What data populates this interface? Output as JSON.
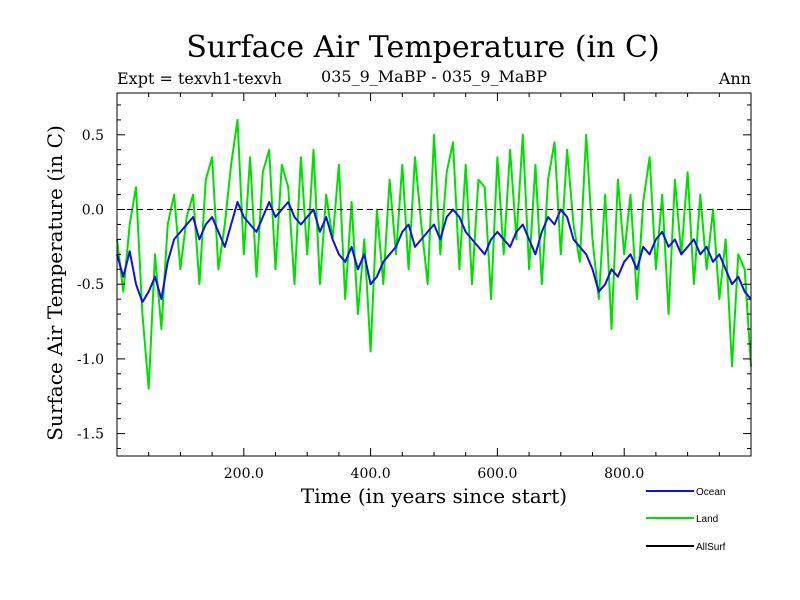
{
  "chart_data": {
    "type": "line",
    "title": "Surface Air Temperature (in C)",
    "subtitle_left": "Expt = texvh1-texvh",
    "subtitle_center": "035_9_MaBP - 035_9_MaBP",
    "subtitle_right": "Ann",
    "xlabel": "Time (in years since start)",
    "ylabel": "Surface Air Temperature (in C)",
    "xlim": [
      0,
      1000
    ],
    "ylim": [
      -1.65,
      0.78
    ],
    "x_ticks": [
      200,
      400,
      600,
      800
    ],
    "x_tick_labels": [
      "200.0",
      "400.0",
      "600.0",
      "800.0"
    ],
    "y_ticks": [
      0.5,
      0.0,
      -0.5,
      -1.0,
      -1.5
    ],
    "y_tick_labels": [
      "0.5",
      "0.0",
      "-0.5",
      "-1.0",
      "-1.5"
    ],
    "reference_line": 0.0,
    "series": [
      {
        "name": "Ocean",
        "color": "#1010e0",
        "x": [
          0,
          10,
          20,
          30,
          40,
          50,
          60,
          70,
          80,
          90,
          100,
          110,
          120,
          130,
          140,
          150,
          160,
          170,
          180,
          190,
          200,
          210,
          220,
          230,
          240,
          250,
          260,
          270,
          280,
          290,
          300,
          310,
          320,
          330,
          340,
          350,
          360,
          370,
          380,
          390,
          400,
          410,
          420,
          430,
          440,
          450,
          460,
          470,
          480,
          490,
          500,
          510,
          520,
          530,
          540,
          550,
          560,
          570,
          580,
          590,
          600,
          610,
          620,
          630,
          640,
          650,
          660,
          670,
          680,
          690,
          700,
          710,
          720,
          730,
          740,
          750,
          760,
          770,
          780,
          790,
          800,
          810,
          820,
          830,
          840,
          850,
          860,
          870,
          880,
          890,
          900,
          910,
          920,
          930,
          940,
          950,
          960,
          970,
          980,
          990,
          1000
        ],
        "values": [
          -0.3,
          -0.45,
          -0.28,
          -0.5,
          -0.62,
          -0.55,
          -0.45,
          -0.6,
          -0.35,
          -0.2,
          -0.15,
          -0.1,
          -0.05,
          -0.2,
          -0.1,
          -0.05,
          -0.15,
          -0.25,
          -0.1,
          0.05,
          -0.05,
          -0.1,
          -0.15,
          -0.05,
          0.05,
          -0.05,
          0.0,
          0.05,
          -0.05,
          -0.1,
          -0.05,
          0.0,
          -0.15,
          -0.05,
          -0.2,
          -0.3,
          -0.35,
          -0.25,
          -0.4,
          -0.3,
          -0.5,
          -0.45,
          -0.35,
          -0.3,
          -0.25,
          -0.15,
          -0.1,
          -0.25,
          -0.2,
          -0.15,
          -0.1,
          -0.2,
          -0.05,
          0.0,
          -0.05,
          -0.15,
          -0.2,
          -0.25,
          -0.3,
          -0.2,
          -0.15,
          -0.2,
          -0.25,
          -0.15,
          -0.1,
          -0.2,
          -0.3,
          -0.15,
          -0.05,
          -0.1,
          0.0,
          -0.05,
          -0.2,
          -0.25,
          -0.3,
          -0.4,
          -0.55,
          -0.5,
          -0.4,
          -0.45,
          -0.35,
          -0.3,
          -0.4,
          -0.25,
          -0.3,
          -0.2,
          -0.15,
          -0.25,
          -0.2,
          -0.3,
          -0.25,
          -0.2,
          -0.3,
          -0.25,
          -0.35,
          -0.3,
          -0.4,
          -0.5,
          -0.45,
          -0.55,
          -0.6
        ]
      },
      {
        "name": "Land",
        "color": "#00e000",
        "x": [
          0,
          10,
          20,
          30,
          40,
          50,
          60,
          70,
          80,
          90,
          100,
          110,
          120,
          130,
          140,
          150,
          160,
          170,
          180,
          190,
          200,
          210,
          220,
          230,
          240,
          250,
          260,
          270,
          280,
          290,
          300,
          310,
          320,
          330,
          340,
          350,
          360,
          370,
          380,
          390,
          400,
          410,
          420,
          430,
          440,
          450,
          460,
          470,
          480,
          490,
          500,
          510,
          520,
          530,
          540,
          550,
          560,
          570,
          580,
          590,
          600,
          610,
          620,
          630,
          640,
          650,
          660,
          670,
          680,
          690,
          700,
          710,
          720,
          730,
          740,
          750,
          760,
          770,
          780,
          790,
          800,
          810,
          820,
          830,
          840,
          850,
          860,
          870,
          880,
          890,
          900,
          910,
          920,
          930,
          940,
          950,
          960,
          970,
          980,
          990,
          1000
        ],
        "values": [
          -0.2,
          -0.55,
          -0.1,
          0.15,
          -0.7,
          -1.2,
          -0.3,
          -0.8,
          -0.1,
          0.1,
          -0.4,
          -0.05,
          0.1,
          -0.5,
          0.2,
          0.35,
          -0.4,
          -0.1,
          0.3,
          0.6,
          -0.3,
          0.35,
          -0.45,
          0.25,
          0.4,
          -0.4,
          0.3,
          0.15,
          -0.5,
          0.35,
          -0.3,
          0.4,
          -0.5,
          0.1,
          -0.2,
          0.3,
          -0.6,
          0.05,
          -0.7,
          -0.2,
          -0.95,
          0.0,
          -0.5,
          0.2,
          -0.3,
          0.3,
          -0.4,
          0.35,
          -0.1,
          -0.5,
          0.5,
          -0.3,
          0.25,
          0.45,
          -0.4,
          0.3,
          -0.5,
          0.2,
          0.15,
          -0.6,
          0.35,
          -0.3,
          0.4,
          -0.2,
          0.5,
          -0.4,
          0.3,
          -0.5,
          0.2,
          0.45,
          -0.3,
          0.4,
          -0.1,
          -0.35,
          0.5,
          -0.2,
          -0.6,
          0.1,
          -0.8,
          0.2,
          -0.3,
          0.1,
          -0.6,
          0.05,
          0.35,
          -0.4,
          0.1,
          -0.7,
          0.2,
          -0.3,
          0.25,
          -0.5,
          0.1,
          -0.4,
          0.0,
          -0.6,
          -0.2,
          -1.05,
          -0.3,
          -0.4,
          -1.05
        ]
      },
      {
        "name": "AllSurf",
        "color": "#000000",
        "x": [],
        "values": []
      }
    ],
    "legend": "bottom-right"
  }
}
